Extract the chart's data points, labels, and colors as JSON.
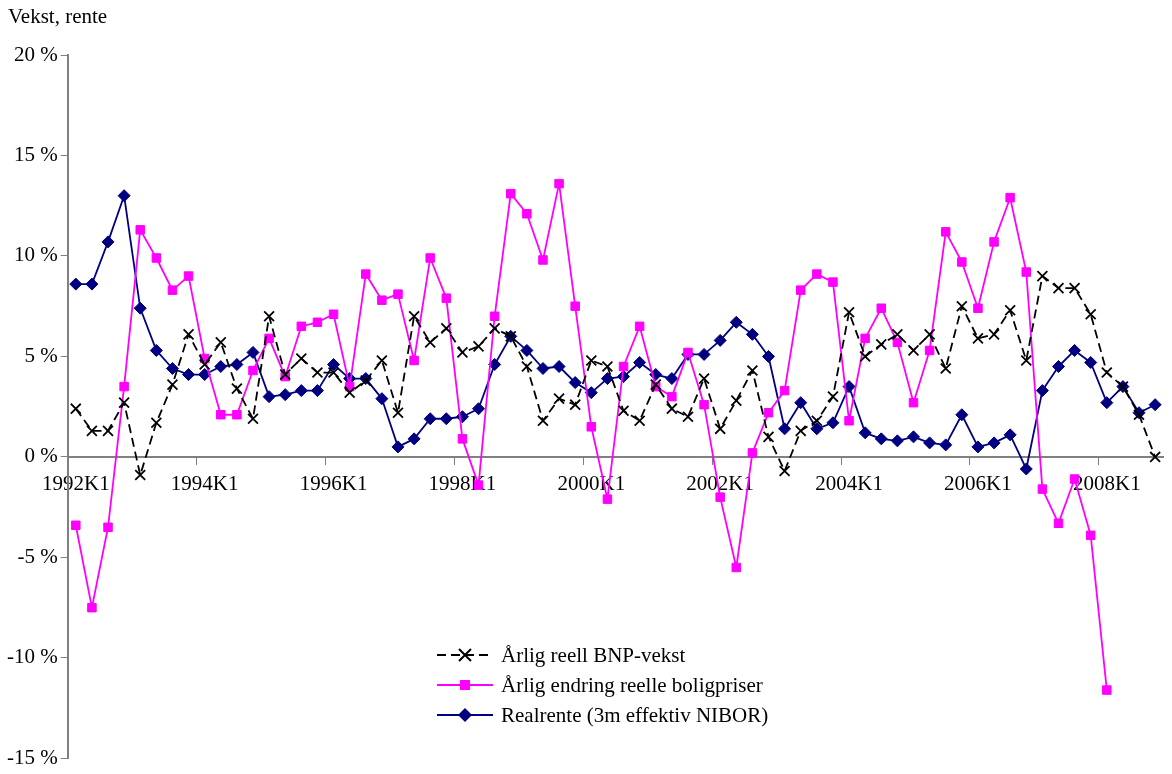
{
  "chart_data": {
    "type": "line",
    "ylabel": "Vekst, rente",
    "categories": [
      "1992K1",
      null,
      null,
      null,
      null,
      null,
      null,
      null,
      "1994K1",
      null,
      null,
      null,
      null,
      null,
      null,
      null,
      "1996K1",
      null,
      null,
      null,
      null,
      null,
      null,
      null,
      "1998K1",
      null,
      null,
      null,
      null,
      null,
      null,
      null,
      "2000K1",
      null,
      null,
      null,
      null,
      null,
      null,
      null,
      "2002K1",
      null,
      null,
      null,
      null,
      null,
      null,
      null,
      "2004K1",
      null,
      null,
      null,
      null,
      null,
      null,
      null,
      "2006K1",
      null,
      null,
      null,
      null,
      null,
      null,
      null,
      "2008K1",
      null,
      null,
      null
    ],
    "ylim": [
      -15,
      20
    ],
    "yticks": [
      {
        "value": -15,
        "label": "-15 %"
      },
      {
        "value": -10,
        "label": "-10 %"
      },
      {
        "value": -5,
        "label": "-5 %"
      },
      {
        "value": 0,
        "label": "0 %"
      },
      {
        "value": 5,
        "label": "5 %"
      },
      {
        "value": 10,
        "label": "10 %"
      },
      {
        "value": 15,
        "label": "15 %"
      },
      {
        "value": 20,
        "label": "20 %"
      }
    ],
    "grid": false,
    "legend": "bottom",
    "series": [
      {
        "name": "Årlig reell BNP-vekst",
        "color": "#000000",
        "marker": "cross",
        "line_style": "dashed",
        "values": [
          2.4,
          1.3,
          1.3,
          2.7,
          -0.9,
          1.7,
          3.6,
          6.1,
          4.6,
          5.7,
          3.4,
          1.9,
          7.0,
          4.1,
          4.9,
          4.2,
          4.2,
          3.2,
          3.8,
          4.8,
          2.2,
          7.0,
          5.7,
          6.4,
          5.2,
          5.5,
          6.4,
          6.0,
          4.5,
          1.8,
          2.9,
          2.6,
          4.8,
          4.5,
          2.3,
          1.8,
          3.6,
          2.4,
          2.0,
          3.9,
          1.4,
          2.8,
          4.3,
          1.0,
          -0.7,
          1.3,
          1.8,
          3.0,
          7.2,
          5.0,
          5.6,
          6.1,
          5.3,
          6.1,
          4.4,
          7.5,
          5.9,
          6.1,
          7.3,
          4.8,
          9.0,
          8.4,
          8.4,
          7.1,
          4.2,
          3.5,
          2.1,
          0.0
        ]
      },
      {
        "name": "Årlig endring reelle boligpriser",
        "color": "#ff00ff",
        "marker": "square",
        "line_style": "solid",
        "values": [
          -3.4,
          -7.5,
          -3.5,
          3.5,
          11.3,
          9.9,
          8.3,
          9.0,
          4.9,
          2.1,
          2.1,
          4.3,
          5.9,
          4.0,
          6.5,
          6.7,
          7.1,
          3.5,
          9.1,
          7.8,
          8.1,
          4.8,
          9.9,
          7.9,
          0.9,
          -1.4,
          7.0,
          13.1,
          12.1,
          9.8,
          13.6,
          7.5,
          1.5,
          -2.1,
          4.5,
          6.5,
          3.5,
          3.0,
          5.2,
          2.6,
          -2.0,
          -5.5,
          0.2,
          2.2,
          3.3,
          8.3,
          9.1,
          8.7,
          1.8,
          5.9,
          7.4,
          5.7,
          2.7,
          5.3,
          11.2,
          9.7,
          7.4,
          10.7,
          12.9,
          9.2,
          -1.6,
          -3.3,
          -1.1,
          -3.9,
          -11.6,
          null,
          null,
          null
        ]
      },
      {
        "name": "Realrente (3m effektiv NIBOR)",
        "color": "#000080",
        "marker": "diamond",
        "line_style": "solid",
        "values": [
          8.6,
          8.6,
          10.7,
          13.0,
          7.4,
          5.3,
          4.4,
          4.1,
          4.1,
          4.5,
          4.6,
          5.2,
          3.0,
          3.1,
          3.3,
          3.3,
          4.6,
          3.9,
          3.9,
          2.9,
          0.5,
          0.9,
          1.9,
          1.9,
          2.0,
          2.4,
          4.6,
          6.0,
          5.3,
          4.4,
          4.5,
          3.7,
          3.2,
          3.9,
          4.0,
          4.7,
          4.1,
          3.9,
          5.1,
          5.1,
          5.8,
          6.7,
          6.1,
          5.0,
          1.4,
          2.7,
          1.4,
          1.7,
          3.5,
          1.2,
          0.9,
          0.8,
          1.0,
          0.7,
          0.6,
          2.1,
          0.5,
          0.7,
          1.1,
          -0.6,
          3.3,
          4.5,
          5.3,
          4.7,
          2.7,
          3.5,
          2.2,
          2.6
        ]
      }
    ]
  }
}
